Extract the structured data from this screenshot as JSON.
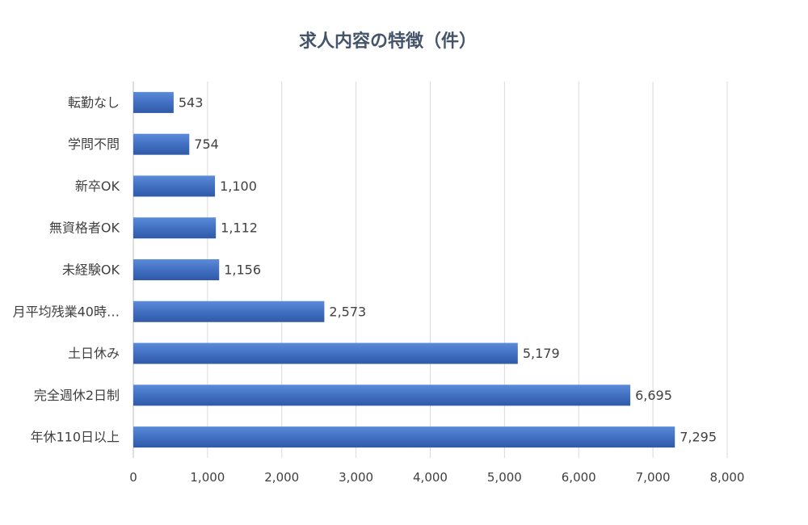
{
  "chart_data": {
    "type": "bar",
    "orientation": "horizontal",
    "title": "求人内容の特徴（件）",
    "categories": [
      "転勤なし",
      "学問不問",
      "新卒OK",
      "無資格者OK",
      "未経験OK",
      "月平均残業40時…",
      "土日休み",
      "完全週休2日制",
      "年休110日以上"
    ],
    "values": [
      543,
      754,
      1100,
      1112,
      1156,
      2573,
      5179,
      6695,
      7295
    ],
    "value_labels": [
      "543",
      "754",
      "1,100",
      "1,112",
      "1,156",
      "2,573",
      "5,179",
      "6,695",
      "7,295"
    ],
    "xlim": [
      0,
      8000
    ],
    "x_ticks": [
      0,
      1000,
      2000,
      3000,
      4000,
      5000,
      6000,
      7000,
      8000
    ],
    "x_tick_labels": [
      "0",
      "1,000",
      "2,000",
      "3,000",
      "4,000",
      "5,000",
      "6,000",
      "7,000",
      "8,000"
    ],
    "xlabel": "",
    "ylabel": "",
    "grid": true,
    "legend": "none",
    "bar_color": "#4472C4",
    "bar_color_light": "#5B8BDB",
    "bar_color_dark": "#2F5AA8"
  }
}
